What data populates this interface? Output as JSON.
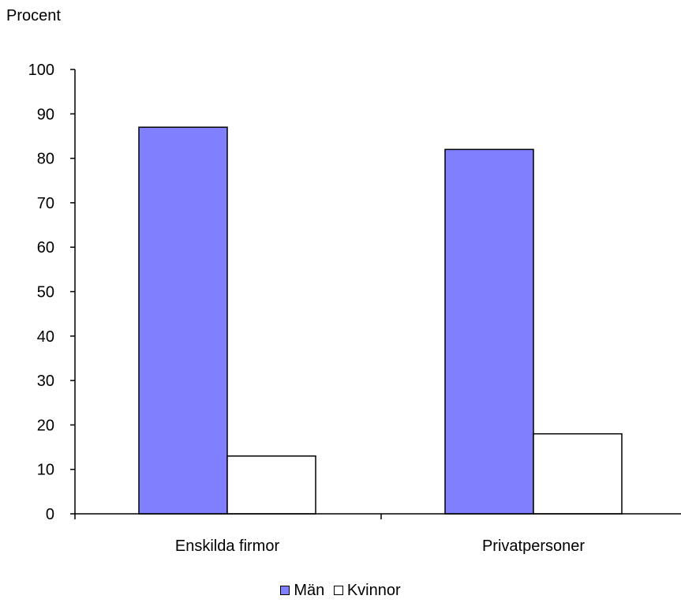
{
  "chart_data": {
    "type": "bar",
    "ylabel": "Procent",
    "xlabel": "",
    "ylim": [
      0,
      100
    ],
    "yticks": [
      "0",
      "10",
      "20",
      "30",
      "40",
      "50",
      "60",
      "70",
      "80",
      "90",
      "100"
    ],
    "categories": [
      "Enskilda firmor",
      "Privatpersoner"
    ],
    "series": [
      {
        "name": "Män",
        "values": [
          87,
          82
        ],
        "color": "#8080ff"
      },
      {
        "name": "Kvinnor",
        "values": [
          13,
          18
        ],
        "color": "#ffffff"
      }
    ],
    "grid": false,
    "legend_position": "bottom-center"
  }
}
